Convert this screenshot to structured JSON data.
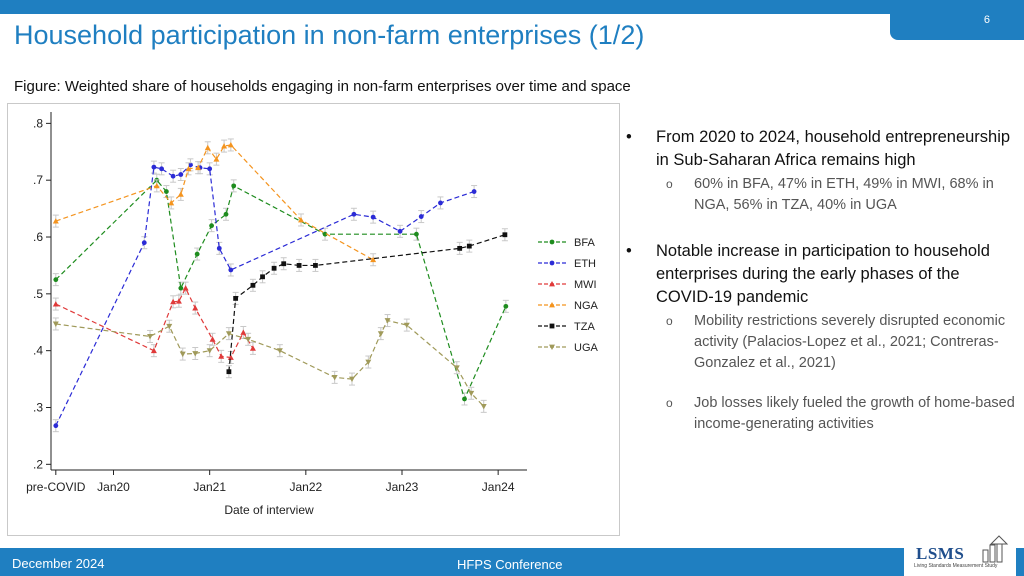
{
  "header": {
    "title": "Household participation in non-farm enterprises (1/2)",
    "page_number": "6"
  },
  "figure": {
    "caption": "Figure: Weighted share of households engaging in non-farm enterprises over time and space"
  },
  "bullets": [
    {
      "text": "From 2020 to 2024, household entrepreneurship in Sub-Saharan Africa remains high",
      "subs": [
        "60% in BFA, 47% in ETH, 49% in MWI, 68% in NGA, 56% in TZA, 40% in UGA"
      ]
    },
    {
      "text": "Notable increase in participation to household enterprises during the early phases of the COVID-19 pandemic",
      "subs": [
        "Mobility restrictions severely disrupted economic activity (Palacios-Lopez et al., 2021; Contreras-Gonzalez et al., 2021)",
        "Job losses likely fueled the growth of home-based income-generating activities"
      ]
    }
  ],
  "footer": {
    "date": "December 2024",
    "conference": "HFPS Conference",
    "logo_text": "LSMS",
    "logo_subtitle": "Living Standards Measurement Study"
  },
  "chart_data": {
    "type": "line",
    "title": "",
    "xlabel": "Date of interview",
    "ylabel": "",
    "x_tick_labels": [
      "pre-COVID",
      "Jan20",
      "Jan21",
      "Jan22",
      "Jan23",
      "Jan24"
    ],
    "x_tick_positions": [
      -0.6,
      0,
      1,
      2,
      3,
      4
    ],
    "y_tick_labels": [
      ".2",
      ".3",
      ".4",
      ".5",
      ".6",
      ".7",
      ".8"
    ],
    "xlim": [
      -0.65,
      4.3
    ],
    "ylim": [
      0.19,
      0.82
    ],
    "legend_position": "right",
    "series": [
      {
        "name": "BFA",
        "color": "#1e8c1e",
        "marker": "circle",
        "x": [
          -0.6,
          0.45,
          0.55,
          0.7,
          0.87,
          1.02,
          1.17,
          1.25,
          2.2,
          3.15,
          3.65,
          4.08
        ],
        "y": [
          0.525,
          0.7,
          0.68,
          0.51,
          0.57,
          0.62,
          0.64,
          0.69,
          0.605,
          0.605,
          0.315,
          0.478
        ]
      },
      {
        "name": "ETH",
        "color": "#2b2bd6",
        "marker": "circle",
        "x": [
          -0.6,
          0.32,
          0.42,
          0.5,
          0.62,
          0.7,
          0.8,
          0.9,
          1.0,
          1.1,
          1.22,
          2.5,
          2.7,
          2.98,
          3.2,
          3.4,
          3.75
        ],
        "y": [
          0.268,
          0.59,
          0.723,
          0.72,
          0.707,
          0.71,
          0.727,
          0.722,
          0.72,
          0.58,
          0.542,
          0.64,
          0.635,
          0.61,
          0.636,
          0.66,
          0.68
        ]
      },
      {
        "name": "MWI",
        "color": "#e03a3a",
        "marker": "triangle",
        "x": [
          -0.6,
          0.42,
          0.62,
          0.68,
          0.75,
          0.85,
          1.03,
          1.12,
          1.22,
          1.35,
          1.45
        ],
        "y": [
          0.482,
          0.4,
          0.486,
          0.487,
          0.51,
          0.475,
          0.42,
          0.39,
          0.388,
          0.432,
          0.404
        ]
      },
      {
        "name": "NGA",
        "color": "#f4941f",
        "marker": "triangle",
        "x": [
          -0.6,
          0.45,
          0.6,
          0.7,
          0.78,
          0.88,
          0.98,
          1.07,
          1.15,
          1.22,
          1.95,
          2.7
        ],
        "y": [
          0.628,
          0.69,
          0.66,
          0.675,
          0.72,
          0.722,
          0.757,
          0.737,
          0.76,
          0.762,
          0.63,
          0.56
        ]
      },
      {
        "name": "TZA",
        "color": "#111111",
        "marker": "square",
        "x": [
          1.2,
          1.27,
          1.45,
          1.55,
          1.67,
          1.77,
          1.93,
          2.1,
          3.6,
          3.7,
          4.07
        ],
        "y": [
          0.363,
          0.492,
          0.515,
          0.53,
          0.545,
          0.553,
          0.55,
          0.55,
          0.58,
          0.584,
          0.604
        ]
      },
      {
        "name": "UGA",
        "color": "#a09a5a",
        "marker": "triangle-down",
        "x": [
          -0.6,
          0.38,
          0.58,
          0.72,
          0.85,
          1.0,
          1.2,
          1.4,
          1.73,
          2.3,
          2.48,
          2.65,
          2.78,
          2.85,
          3.05,
          3.57,
          3.72,
          3.85
        ],
        "y": [
          0.447,
          0.425,
          0.443,
          0.394,
          0.395,
          0.4,
          0.43,
          0.42,
          0.4,
          0.353,
          0.35,
          0.38,
          0.43,
          0.453,
          0.445,
          0.37,
          0.325,
          0.302
        ]
      }
    ]
  }
}
